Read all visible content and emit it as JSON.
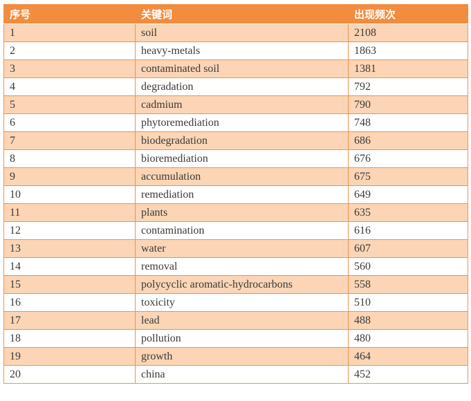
{
  "table": {
    "title": "keyword-frequency-table",
    "columns": [
      {
        "key": "no",
        "label": "序号"
      },
      {
        "key": "keyword",
        "label": "关键词"
      },
      {
        "key": "frequency",
        "label": "出现频次"
      }
    ],
    "rows": [
      {
        "no": "1",
        "keyword": "soil",
        "frequency": "2108"
      },
      {
        "no": "2",
        "keyword": "heavy-metals",
        "frequency": "1863"
      },
      {
        "no": "3",
        "keyword": "contaminated soil",
        "frequency": "1381"
      },
      {
        "no": "4",
        "keyword": "degradation",
        "frequency": "792"
      },
      {
        "no": "5",
        "keyword": "cadmium",
        "frequency": "790"
      },
      {
        "no": "6",
        "keyword": "phytoremediation",
        "frequency": "748"
      },
      {
        "no": "7",
        "keyword": "biodegradation",
        "frequency": "686"
      },
      {
        "no": "8",
        "keyword": "bioremediation",
        "frequency": "676"
      },
      {
        "no": "9",
        "keyword": "accumulation",
        "frequency": "675"
      },
      {
        "no": "10",
        "keyword": "remediation",
        "frequency": "649"
      },
      {
        "no": "11",
        "keyword": "plants",
        "frequency": "635"
      },
      {
        "no": "12",
        "keyword": "contamination",
        "frequency": "616"
      },
      {
        "no": "13",
        "keyword": "water",
        "frequency": "607"
      },
      {
        "no": "14",
        "keyword": "removal",
        "frequency": "560"
      },
      {
        "no": "15",
        "keyword": "polycyclic aromatic-hydrocarbons",
        "frequency": "558"
      },
      {
        "no": "16",
        "keyword": "toxicity",
        "frequency": "510"
      },
      {
        "no": "17",
        "keyword": "lead",
        "frequency": "488"
      },
      {
        "no": "18",
        "keyword": "pollution",
        "frequency": "480"
      },
      {
        "no": "19",
        "keyword": "growth",
        "frequency": "464"
      },
      {
        "no": "20",
        "keyword": "china",
        "frequency": "452"
      }
    ]
  },
  "colors": {
    "header_bg": "#F28C3E",
    "header_text": "#FFFFFF",
    "row_alt_bg": "#FBD5B5",
    "row_bg": "#FFFFFF",
    "border": "#F0914C",
    "body_text": "#3A3A3A"
  }
}
